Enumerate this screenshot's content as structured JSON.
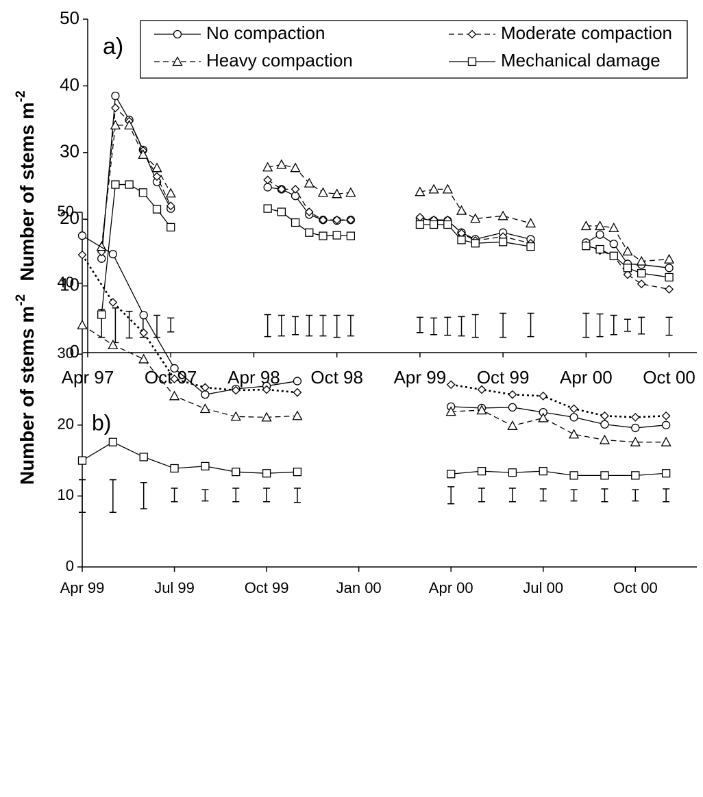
{
  "chart_data": [
    {
      "type": "line",
      "label": "a)",
      "y_label": "Number of stems m",
      "y_label_superscript": "-2",
      "x": [
        "1997-05",
        "1997-06",
        "1997-07",
        "1997-08",
        "1997-09",
        "1997-10",
        "1998-05",
        "1998-06",
        "1998-07",
        "1998-08",
        "1998-09",
        "1998-10",
        "1998-11",
        "1999-04",
        "1999-05",
        "1999-06",
        "1999-07",
        "1999-08",
        "1999-10",
        "1999-12",
        "2000-04",
        "2000-05",
        "2000-06",
        "2000-07",
        "2000-08",
        "2000-10"
      ],
      "xlim": [
        "1997-04",
        "2000-12"
      ],
      "xticks": [
        {
          "value": "1997-04",
          "label": "Apr 97"
        },
        {
          "value": "1997-10",
          "label": "Oct 97"
        },
        {
          "value": "1998-04",
          "label": "Apr 98"
        },
        {
          "value": "1998-10",
          "label": "Oct 98"
        },
        {
          "value": "1999-04",
          "label": "Apr 99"
        },
        {
          "value": "1999-10",
          "label": "Oct 99"
        },
        {
          "value": "2000-04",
          "label": "Apr 00"
        },
        {
          "value": "2000-10",
          "label": "Oct 00"
        }
      ],
      "ylim": [
        0,
        50
      ],
      "yticks": [
        0,
        10,
        20,
        30,
        40,
        50
      ],
      "legend": "top",
      "series": [
        {
          "name": "No compaction",
          "marker": "circle",
          "dash": "solid",
          "color": "#000000",
          "values": [
            14.1,
            38.5,
            34.9,
            30.4,
            25.6,
            21.6,
            24.8,
            24.5,
            23.5,
            20.7,
            19.9,
            19.8,
            19.9,
            20.1,
            19.8,
            19.8,
            18,
            17,
            18,
            17,
            16.5,
            17.7,
            16.3,
            13.3,
            13.2,
            12.7
          ]
        },
        {
          "name": "Moderate compaction",
          "marker": "diamond",
          "dash": "dashed",
          "color": "#000000",
          "values": [
            15.1,
            36.7,
            34.7,
            30.3,
            26.4,
            22,
            25.9,
            24.5,
            24.5,
            21.1,
            19.9,
            19.9,
            19.9,
            20.3,
            19.9,
            19.9,
            17.9,
            16.8,
            17.4,
            16.4,
            16.1,
            15.3,
            14.5,
            11.7,
            10.3,
            9.5
          ]
        },
        {
          "name": "Heavy compaction",
          "marker": "triangle",
          "dash": "dashed",
          "color": "#000000",
          "values": [
            15.9,
            34.1,
            34.1,
            29.7,
            27.7,
            23.9,
            27.8,
            28.2,
            27.7,
            25.4,
            24,
            23.8,
            24,
            24.1,
            24.5,
            24.5,
            21.3,
            20.1,
            20.5,
            19.4,
            19,
            19,
            18.7,
            15.2,
            13.7,
            14
          ]
        },
        {
          "name": "Mechanical damage",
          "marker": "square",
          "dash": "solid",
          "color": "#000000",
          "values": [
            5.7,
            25.2,
            25.2,
            24,
            21.5,
            18.8,
            21.6,
            21.1,
            19.5,
            18,
            17.5,
            17.6,
            17.5,
            19.2,
            19.2,
            19.2,
            16.9,
            16.4,
            16.6,
            15.9,
            16,
            15.5,
            14.5,
            12.7,
            11.9,
            11.3
          ]
        }
      ],
      "error_bars": {
        "low": [
          2.3,
          1.5,
          2.2,
          2.3,
          2.3,
          3.1,
          2.4,
          2.5,
          2.7,
          2.5,
          2.5,
          2.3,
          2.5,
          3,
          2.7,
          2.6,
          2.5,
          2.3,
          2.3,
          2.4,
          2.3,
          2.4,
          2.7,
          3.2,
          2.8,
          2.6
        ],
        "high": [
          6.5,
          6.7,
          6.2,
          5.6,
          5.6,
          5.2,
          5.7,
          5.6,
          5.4,
          5.6,
          5.6,
          5.6,
          5.6,
          5.3,
          5.2,
          5.3,
          5.4,
          5.7,
          5.9,
          5.9,
          5.9,
          5.8,
          5.6,
          5,
          5.3,
          5.3
        ]
      }
    },
    {
      "type": "line",
      "label": "b)",
      "y_label": "Number of stems m",
      "y_label_superscript": "-2",
      "x": [
        "1999-04",
        "1999-05",
        "1999-06",
        "1999-07",
        "1999-08",
        "1999-09",
        "1999-10",
        "1999-11",
        "2000-04",
        "2000-05",
        "2000-06",
        "2000-07",
        "2000-08",
        "2000-09",
        "2000-10",
        "2000-11"
      ],
      "xlim": [
        "1999-04",
        "2000-12"
      ],
      "xticks": [
        {
          "value": "1999-04",
          "label": "Apr 99"
        },
        {
          "value": "1999-07",
          "label": "Jul 99"
        },
        {
          "value": "1999-10",
          "label": "Oct 99"
        },
        {
          "value": "2000-01",
          "label": "Jan 00"
        },
        {
          "value": "2000-04",
          "label": "Apr 00"
        },
        {
          "value": "2000-07",
          "label": "Jul 00"
        },
        {
          "value": "2000-10",
          "label": "Oct 00"
        }
      ],
      "ylim": [
        0,
        50
      ],
      "yticks": [
        0,
        10,
        20,
        30,
        40,
        50
      ],
      "series": [
        {
          "marker": "circle",
          "dash": "solid",
          "color": "#000000",
          "values": [
            46.7,
            44.1,
            35.5,
            28,
            24.3,
            25.1,
            25.5,
            26.2,
            22.6,
            22.4,
            22.5,
            21.8,
            21.1,
            20.1,
            19.6,
            20
          ]
        },
        {
          "marker": "diamond",
          "dash": "dotted",
          "color": "#000000",
          "values": [
            44,
            37.3,
            33,
            26.5,
            25.3,
            24.9,
            25,
            24.6,
            25.7,
            25,
            24.3,
            24.1,
            22.3,
            21.3,
            21.1,
            21.3
          ]
        },
        {
          "marker": "triangle",
          "dash": "dashed",
          "color": "#000000",
          "values": [
            34.1,
            31.3,
            29.3,
            24.1,
            22.3,
            21.2,
            21.1,
            21.3,
            21.9,
            22.1,
            19.9,
            21,
            18.7,
            17.9,
            17.6,
            17.6
          ]
        },
        {
          "marker": "square",
          "dash": "solid",
          "color": "#000000",
          "values": [
            15,
            17.6,
            15.5,
            13.9,
            14.2,
            13.4,
            13.2,
            13.4,
            13.1,
            13.5,
            13.3,
            13.5,
            12.9,
            12.9,
            12.9,
            13.2
          ]
        }
      ],
      "error_bars": {
        "low": [
          7.7,
          7.7,
          8.2,
          9.2,
          9.3,
          9.2,
          9.2,
          9.1,
          8.9,
          9.2,
          9.2,
          9.3,
          9.3,
          9.2,
          9.3,
          9.2
        ],
        "high": [
          12.3,
          12.3,
          11.9,
          11.1,
          10.9,
          11.1,
          11.1,
          11.1,
          11.3,
          11.1,
          11.1,
          11,
          10.9,
          11,
          10.9,
          11
        ]
      }
    }
  ]
}
